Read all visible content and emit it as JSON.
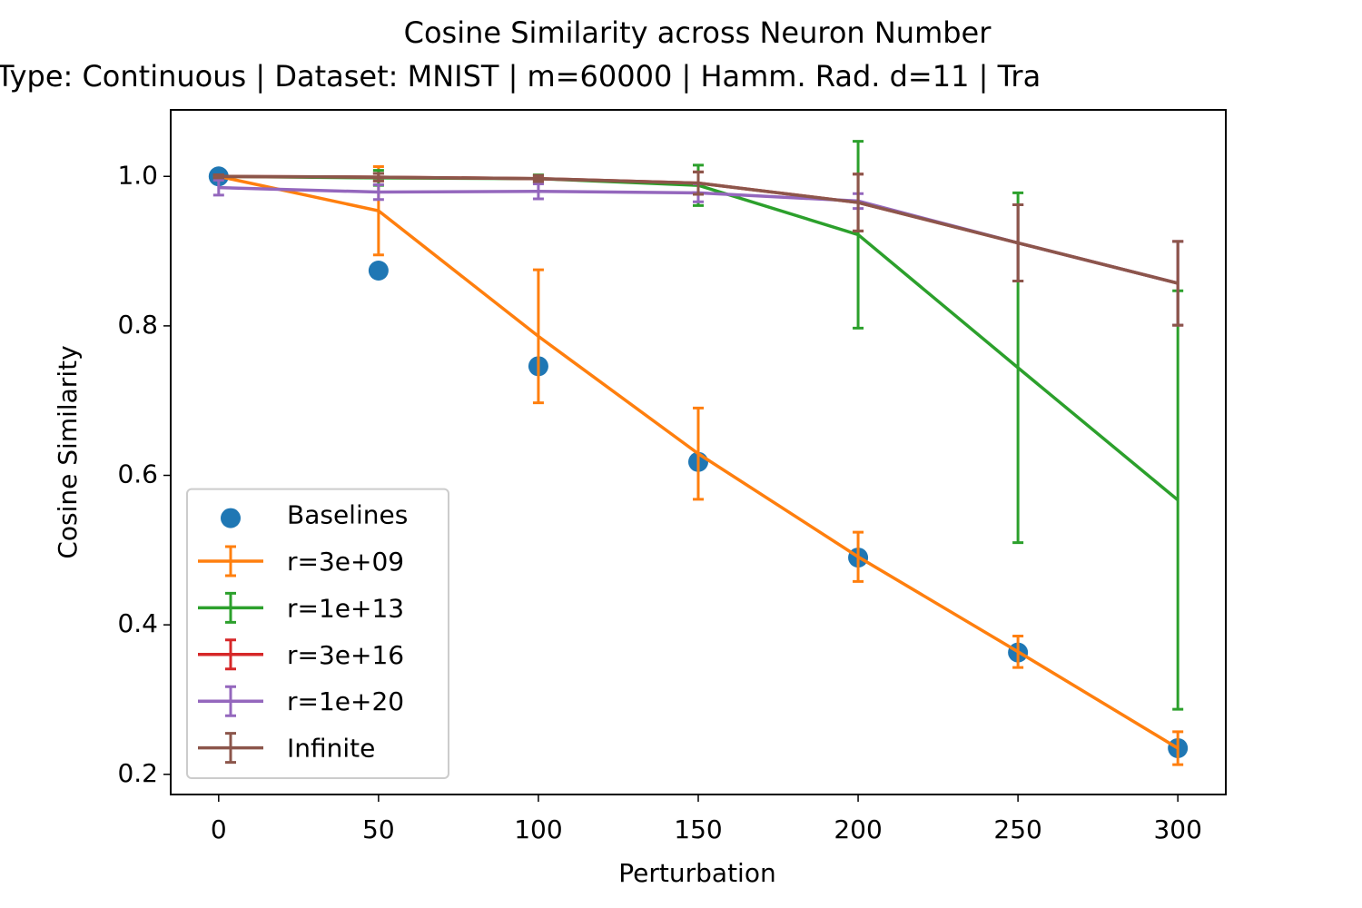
{
  "chart_data": {
    "type": "line",
    "title": "Cosine Similarity across Neuron Number",
    "subtitle": "Type: Continuous | Dataset: MNIST | m=60000 | Hamm. Rad. d=11 | Tra",
    "xlabel": "Perturbation",
    "ylabel": "Cosine Similarity",
    "x": [
      0,
      50,
      100,
      150,
      200,
      250,
      300
    ],
    "series": [
      {
        "name": "Baselines",
        "type": "scatter",
        "color": "#1f77b4",
        "values": [
          1.0,
          0.874,
          0.746,
          0.618,
          0.49,
          0.363,
          0.235
        ]
      },
      {
        "name": "r=3e+09",
        "color": "#ff7f0e",
        "values": [
          1.0,
          0.954,
          0.786,
          0.629,
          0.491,
          0.364,
          0.235
        ],
        "errors": [
          0,
          0.059,
          0.089,
          0.061,
          0.033,
          0.021,
          0.022
        ]
      },
      {
        "name": "r=1e+13",
        "color": "#2ca02c",
        "values": [
          1.0,
          0.998,
          0.997,
          0.988,
          0.922,
          0.744,
          0.567
        ],
        "errors": [
          0.002,
          0.01,
          0.005,
          0.027,
          0.125,
          0.234,
          0.28
        ]
      },
      {
        "name": "r=3e+16",
        "color": "#d62728",
        "values": [
          1.0,
          0.999,
          0.997,
          0.991,
          0.965,
          0.911,
          0.857
        ],
        "errors": [
          0.002,
          0.005,
          0.004,
          0.015,
          0.038,
          0.051,
          0.056
        ]
      },
      {
        "name": "r=1e+20",
        "color": "#9467bd",
        "values": [
          0.985,
          0.979,
          0.98,
          0.978,
          0.967,
          0.911,
          0.857
        ],
        "errors": [
          0.01,
          0.01,
          0.01,
          0.012,
          0.01,
          0.051,
          0.056
        ]
      },
      {
        "name": "Infinite",
        "color": "#8c564b",
        "values": [
          1.0,
          0.999,
          0.997,
          0.991,
          0.965,
          0.911,
          0.857
        ],
        "errors": [
          0.002,
          0.005,
          0.004,
          0.015,
          0.038,
          0.051,
          0.056
        ]
      }
    ],
    "xlim": [
      -15,
      315
    ],
    "xticks": [
      0,
      50,
      100,
      150,
      200,
      250,
      300
    ],
    "ylim": [
      0.173,
      1.089
    ],
    "yticks": [
      0.2,
      0.4,
      0.6,
      0.8,
      {
        "value": 1,
        "label": "1.0"
      }
    ],
    "grid": false,
    "legend": "lower left"
  }
}
